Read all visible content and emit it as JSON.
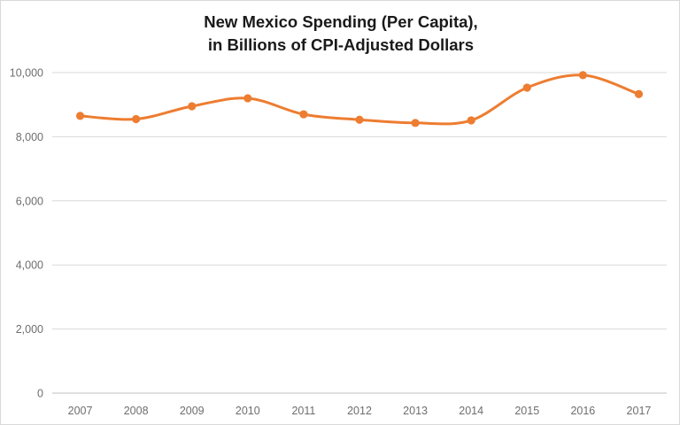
{
  "chart_data": {
    "type": "line",
    "title_line1": "New Mexico Spending (Per Capita),",
    "title_line2": "in Billions of CPI-Adjusted Dollars",
    "categories": [
      "2007",
      "2008",
      "2009",
      "2010",
      "2011",
      "2012",
      "2013",
      "2014",
      "2015",
      "2016",
      "2017"
    ],
    "values": [
      8650,
      8550,
      8950,
      9200,
      8700,
      8530,
      8430,
      8510,
      9530,
      9920,
      9330
    ],
    "xlabel": "",
    "ylabel": "",
    "ylim": [
      0,
      10000
    ],
    "yticks": [
      0,
      2000,
      4000,
      6000,
      8000,
      10000
    ],
    "ytick_labels": [
      "0",
      "2,000",
      "4,000",
      "6,000",
      "8,000",
      "10,000"
    ],
    "grid": true,
    "legend": "none",
    "line_style": "smoothed",
    "marker": "circle",
    "line_color": "#ED7D31",
    "marker_color": "#ED7D31",
    "gridline_color": "#D9D9D9",
    "axis_line_color": "#BFBFBF",
    "tick_label_color": "#6E6E6E",
    "title_color": "#1A1A1A",
    "background_color": "#FFFFFF",
    "border_color": "#D9D9D9"
  }
}
